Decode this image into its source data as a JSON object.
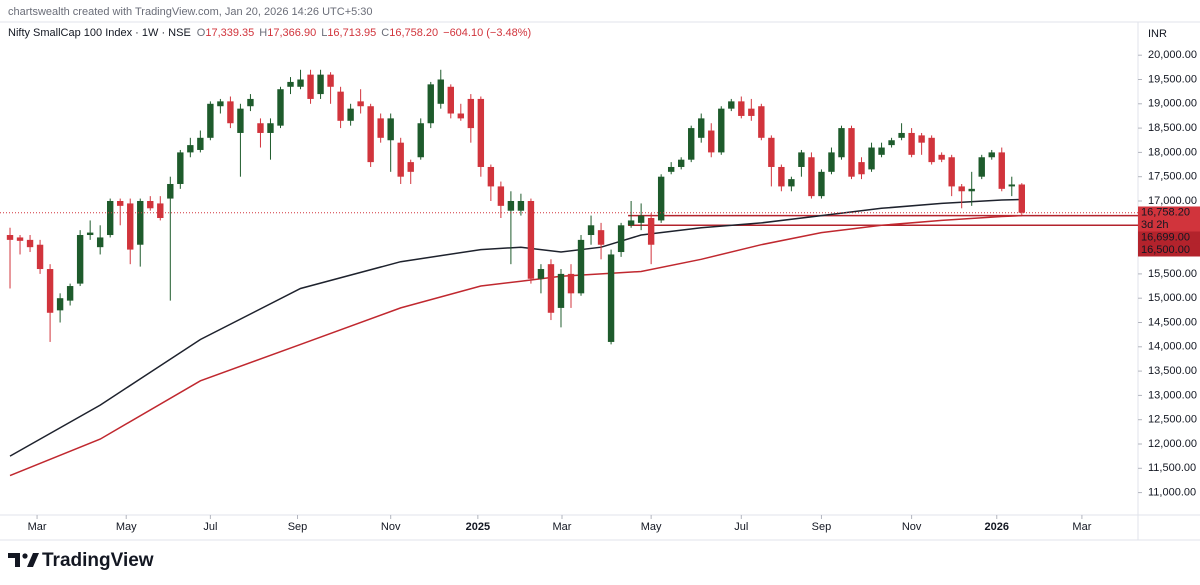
{
  "header": {
    "credit": "chartswealth created with TradingView.com, Jan 20, 2026 14:26 UTC+5:30"
  },
  "footer": {
    "brand": "TradingView"
  },
  "chart_data": {
    "type": "candlestick",
    "title": "Nifty SmallCap 100 Index · 1W · NSE",
    "ohlc_legend": [
      {
        "key": "O",
        "value": "17,339.35"
      },
      {
        "key": "H",
        "value": "17,366.90"
      },
      {
        "key": "L",
        "value": "16,713.95"
      },
      {
        "key": "C",
        "value": "16,758.20"
      }
    ],
    "change": "−604.10 (−3.48%)",
    "currency": "INR",
    "up_color": "#1e5b2c",
    "down_color": "#d1343c",
    "candles": {
      "open": [
        16300,
        16250,
        16200,
        16100,
        15600,
        14750,
        14950,
        15300,
        16300,
        16050,
        16300,
        17000,
        16950,
        16100,
        17000,
        16950,
        17050,
        17350,
        18000,
        18050,
        18300,
        18950,
        19050,
        18400,
        18950,
        18600,
        18400,
        18550,
        19350,
        19350,
        19600,
        19200,
        19600,
        19250,
        18650,
        19050,
        18950,
        18700,
        18250,
        18200,
        17800,
        17900,
        18600,
        19000,
        19350,
        18800,
        19100,
        19100,
        17700,
        17300,
        16800,
        16800,
        17000,
        15400,
        15700,
        14800,
        15500,
        15100,
        16300,
        16400,
        14100,
        15950,
        16500,
        16550,
        16650,
        16600,
        17600,
        17700,
        17850,
        18300,
        18450,
        18000,
        18900,
        19050,
        18900,
        18950,
        18300,
        17700,
        17300,
        17700,
        17900,
        17100,
        17600,
        17900,
        18500,
        17800,
        17650,
        17950,
        18150,
        18300,
        18400,
        18350,
        18300,
        17950,
        17900,
        17300,
        17200,
        17500,
        17900,
        18000,
        17300,
        17339.35
      ],
      "high": [
        16450,
        16300,
        16300,
        16200,
        15700,
        15100,
        15300,
        16400,
        16600,
        16500,
        17050,
        17050,
        17050,
        17050,
        17100,
        17100,
        17500,
        18050,
        18300,
        18450,
        19050,
        19100,
        19150,
        19000,
        19200,
        18700,
        18700,
        19350,
        19550,
        19700,
        19700,
        19700,
        19650,
        19350,
        19000,
        19300,
        19000,
        18800,
        18800,
        18300,
        17850,
        18700,
        19450,
        19700,
        19400,
        19000,
        19200,
        19150,
        17750,
        17400,
        17200,
        17150,
        17050,
        15700,
        15800,
        15600,
        15700,
        16300,
        16700,
        16550,
        16000,
        16550,
        17000,
        16950,
        16750,
        17550,
        17800,
        17900,
        18550,
        18800,
        18600,
        18950,
        19100,
        19150,
        19100,
        19000,
        18350,
        17750,
        17500,
        18050,
        18000,
        17650,
        18100,
        18550,
        18550,
        17900,
        18200,
        18200,
        18300,
        18600,
        18500,
        18400,
        18350,
        18000,
        17950,
        17350,
        17600,
        17950,
        18050,
        18100,
        17500,
        17366.9
      ],
      "low": [
        15200,
        15900,
        15950,
        15500,
        14100,
        14500,
        14850,
        15250,
        16200,
        15900,
        16250,
        16500,
        15700,
        15650,
        16800,
        16600,
        14950,
        17250,
        17900,
        18000,
        18250,
        18800,
        18500,
        17500,
        18850,
        18100,
        17850,
        18500,
        19200,
        19300,
        19000,
        19100,
        19000,
        18500,
        18550,
        18800,
        17700,
        18200,
        17600,
        17350,
        17350,
        17850,
        18500,
        18900,
        18700,
        18650,
        18200,
        17500,
        17000,
        16650,
        15700,
        16700,
        15300,
        15100,
        14550,
        14400,
        14800,
        15050,
        16100,
        15800,
        14050,
        15850,
        16450,
        16400,
        15700,
        16550,
        17550,
        17650,
        17800,
        18200,
        17900,
        17950,
        18850,
        18700,
        18650,
        18250,
        17300,
        17200,
        17200,
        17500,
        17050,
        17050,
        17550,
        17850,
        17450,
        17450,
        17600,
        17900,
        18100,
        18250,
        17900,
        17950,
        17750,
        17800,
        17100,
        16850,
        16900,
        17450,
        17850,
        17200,
        17100,
        16713.95
      ],
      "close": [
        16200,
        16180,
        16050,
        15600,
        14700,
        15000,
        15250,
        16300,
        16350,
        16250,
        17000,
        16900,
        16000,
        17000,
        16850,
        16650,
        17350,
        18000,
        18150,
        18300,
        19000,
        19050,
        18600,
        18900,
        19100,
        18400,
        18600,
        19300,
        19450,
        19500,
        19100,
        19600,
        19350,
        18650,
        18900,
        18950,
        17800,
        18300,
        18700,
        17500,
        17600,
        18600,
        19400,
        19500,
        18800,
        18700,
        18500,
        17700,
        17300,
        16900,
        17000,
        17000,
        15400,
        15600,
        14700,
        15500,
        15100,
        16200,
        16500,
        16100,
        15900,
        16500,
        16600,
        16700,
        16100,
        17500,
        17700,
        17850,
        18500,
        18700,
        18000,
        18900,
        19050,
        18750,
        18750,
        18300,
        17700,
        17300,
        17450,
        18000,
        17100,
        17600,
        18000,
        18500,
        17500,
        17550,
        18100,
        18100,
        18250,
        18400,
        17950,
        18200,
        17800,
        17850,
        17300,
        17200,
        17250,
        17900,
        18000,
        17250,
        17340,
        16758.2
      ]
    },
    "lines": [
      {
        "color": "#1e222d",
        "x": [
          0,
          9,
          19,
          29,
          39,
          47,
          51,
          55,
          59,
          63,
          69,
          75,
          81,
          87,
          93,
          99,
          101
        ],
        "values": [
          11750,
          12800,
          14150,
          15200,
          15750,
          16000,
          16050,
          15950,
          16050,
          16300,
          16450,
          16550,
          16700,
          16850,
          16950,
          17020,
          17030
        ]
      },
      {
        "color": "#c0282f",
        "x": [
          0,
          9,
          19,
          29,
          39,
          47,
          51,
          55,
          59,
          63,
          69,
          75,
          81,
          87,
          93,
          99,
          101
        ],
        "values": [
          11350,
          12100,
          13300,
          14050,
          14800,
          15250,
          15350,
          15450,
          15500,
          15550,
          15800,
          16100,
          16350,
          16500,
          16600,
          16680,
          16699
        ]
      }
    ],
    "price_line": {
      "value": 16758.2,
      "label": "16,758.20",
      "countdown": "3d 2h",
      "color": "#d1343c"
    },
    "levels": [
      {
        "value": 16699,
        "label": "16,699.00",
        "color": "#b3232c",
        "x_start": 61.7
      },
      {
        "value": 16500,
        "label": "16,500.00",
        "color": "#b3232c",
        "x_start": 61.7
      }
    ],
    "xlim": [
      -1,
      112.6
    ],
    "ylim": [
      10539,
      20683
    ],
    "yticks": [
      {
        "value": 11000,
        "label": "11,000.00"
      },
      {
        "value": 11500,
        "label": "11,500.00"
      },
      {
        "value": 12000,
        "label": "12,000.00"
      },
      {
        "value": 12500,
        "label": "12,500.00"
      },
      {
        "value": 13000,
        "label": "13,000.00"
      },
      {
        "value": 13500,
        "label": "13,500.00"
      },
      {
        "value": 14000,
        "label": "14,000.00"
      },
      {
        "value": 14500,
        "label": "14,500.00"
      },
      {
        "value": 15000,
        "label": "15,000.00"
      },
      {
        "value": 15500,
        "label": "15,500.00"
      },
      {
        "value": 17000,
        "label": "17,000.00"
      },
      {
        "value": 17500,
        "label": "17,500.00"
      },
      {
        "value": 18000,
        "label": "18,000.00"
      },
      {
        "value": 18500,
        "label": "18,500.00"
      },
      {
        "value": 19000,
        "label": "19,000.00"
      },
      {
        "value": 19500,
        "label": "19,500.00"
      },
      {
        "value": 20000,
        "label": "20,000.00"
      }
    ],
    "xticks": [
      {
        "value": 2.7,
        "label": "Mar"
      },
      {
        "value": 11.6,
        "label": "May"
      },
      {
        "value": 20,
        "label": "Jul"
      },
      {
        "value": 28.7,
        "label": "Sep"
      },
      {
        "value": 38,
        "label": "Nov"
      },
      {
        "value": 46.7,
        "label": "2025"
      },
      {
        "value": 55.1,
        "label": "Mar"
      },
      {
        "value": 64,
        "label": "May"
      },
      {
        "value": 73,
        "label": "Jul"
      },
      {
        "value": 81,
        "label": "Sep"
      },
      {
        "value": 90,
        "label": "Nov"
      },
      {
        "value": 98.5,
        "label": "2026"
      },
      {
        "value": 107,
        "label": "Mar"
      }
    ]
  }
}
